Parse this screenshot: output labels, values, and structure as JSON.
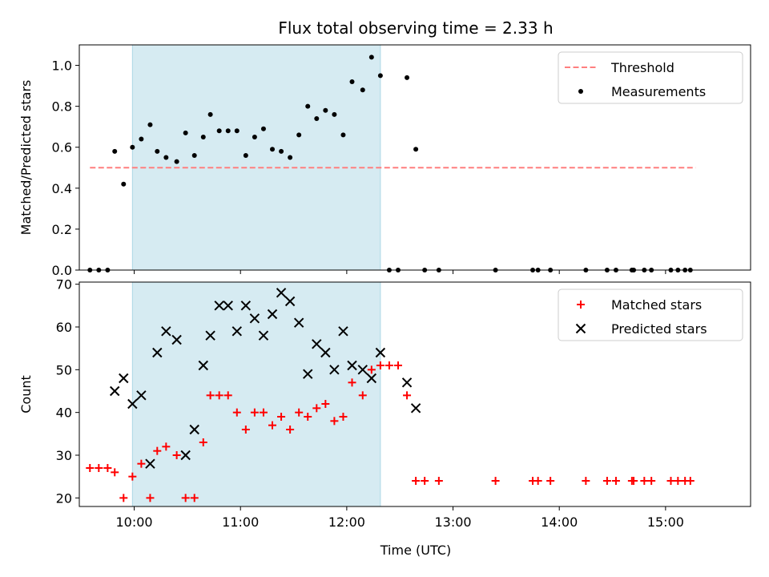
{
  "chart_data": {
    "title": "Flux total observing time = 2.33 h",
    "x_axis": {
      "label": "Time (UTC)",
      "range": [
        "09:29",
        "15:48"
      ],
      "ticks": [
        "10:00",
        "11:00",
        "12:00",
        "13:00",
        "14:00",
        "15:00"
      ]
    },
    "highlight_interval": [
      "09:59",
      "12:19"
    ],
    "panels": [
      {
        "type": "scatter",
        "ylabel": "Matched/Predicted stars",
        "ylim": [
          0,
          1.1
        ],
        "yticks": [
          "0.0",
          "0.2",
          "0.4",
          "0.6",
          "0.8",
          "1.0"
        ],
        "legend_position": "top-right",
        "series": [
          {
            "name": "Threshold",
            "style": "dashed-line",
            "color": "#ff7f7f",
            "points": [
              [
                "09:35",
                0.5
              ],
              [
                "15:17",
                0.5
              ]
            ]
          },
          {
            "name": "Measurements",
            "style": "dot",
            "color": "#000000",
            "points": [
              [
                "09:35",
                0.0
              ],
              [
                "09:40",
                0.0
              ],
              [
                "09:45",
                0.0
              ],
              [
                "09:49",
                0.58
              ],
              [
                "09:54",
                0.42
              ],
              [
                "09:59",
                0.6
              ],
              [
                "10:04",
                0.64
              ],
              [
                "10:09",
                0.71
              ],
              [
                "10:13",
                0.58
              ],
              [
                "10:18",
                0.55
              ],
              [
                "10:24",
                0.53
              ],
              [
                "10:29",
                0.67
              ],
              [
                "10:34",
                0.56
              ],
              [
                "10:39",
                0.65
              ],
              [
                "10:43",
                0.76
              ],
              [
                "10:48",
                0.68
              ],
              [
                "10:53",
                0.68
              ],
              [
                "10:58",
                0.68
              ],
              [
                "11:03",
                0.56
              ],
              [
                "11:08",
                0.65
              ],
              [
                "11:13",
                0.69
              ],
              [
                "11:18",
                0.59
              ],
              [
                "11:23",
                0.58
              ],
              [
                "11:28",
                0.55
              ],
              [
                "11:33",
                0.66
              ],
              [
                "11:38",
                0.8
              ],
              [
                "11:43",
                0.74
              ],
              [
                "11:48",
                0.78
              ],
              [
                "11:53",
                0.76
              ],
              [
                "11:58",
                0.66
              ],
              [
                "12:03",
                0.92
              ],
              [
                "12:09",
                0.88
              ],
              [
                "12:14",
                1.04
              ],
              [
                "12:19",
                0.95
              ],
              [
                "12:24",
                0.0
              ],
              [
                "12:29",
                0.0
              ],
              [
                "12:34",
                0.94
              ],
              [
                "12:39",
                0.59
              ],
              [
                "12:44",
                0.0
              ],
              [
                "12:52",
                0.0
              ],
              [
                "13:24",
                0.0
              ],
              [
                "13:45",
                0.0
              ],
              [
                "13:48",
                0.0
              ],
              [
                "13:55",
                0.0
              ],
              [
                "14:15",
                0.0
              ],
              [
                "14:27",
                0.0
              ],
              [
                "14:32",
                0.0
              ],
              [
                "14:41",
                0.0
              ],
              [
                "14:42",
                0.0
              ],
              [
                "14:48",
                0.0
              ],
              [
                "14:52",
                0.0
              ],
              [
                "15:03",
                0.0
              ],
              [
                "15:07",
                0.0
              ],
              [
                "15:11",
                0.0
              ],
              [
                "15:14",
                0.0
              ]
            ]
          }
        ]
      },
      {
        "type": "scatter",
        "ylabel": "Count",
        "ylim": [
          18,
          70.5
        ],
        "yticks": [
          "20",
          "30",
          "40",
          "50",
          "60",
          "70"
        ],
        "legend_position": "top-right",
        "series": [
          {
            "name": "Matched stars",
            "marker": "plus",
            "color": "#ff0000",
            "points": [
              [
                "09:35",
                27
              ],
              [
                "09:40",
                27
              ],
              [
                "09:45",
                27
              ],
              [
                "09:49",
                26
              ],
              [
                "09:54",
                20
              ],
              [
                "09:59",
                25
              ],
              [
                "10:04",
                28
              ],
              [
                "10:09",
                20
              ],
              [
                "10:13",
                31
              ],
              [
                "10:18",
                32
              ],
              [
                "10:24",
                30
              ],
              [
                "10:29",
                20
              ],
              [
                "10:34",
                20
              ],
              [
                "10:39",
                33
              ],
              [
                "10:43",
                44
              ],
              [
                "10:48",
                44
              ],
              [
                "10:53",
                44
              ],
              [
                "10:58",
                40
              ],
              [
                "11:03",
                36
              ],
              [
                "11:08",
                40
              ],
              [
                "11:13",
                40
              ],
              [
                "11:18",
                37
              ],
              [
                "11:23",
                39
              ],
              [
                "11:28",
                36
              ],
              [
                "11:33",
                40
              ],
              [
                "11:38",
                39
              ],
              [
                "11:43",
                41
              ],
              [
                "11:48",
                42
              ],
              [
                "11:53",
                38
              ],
              [
                "11:58",
                39
              ],
              [
                "12:03",
                47
              ],
              [
                "12:09",
                44
              ],
              [
                "12:14",
                50
              ],
              [
                "12:19",
                51
              ],
              [
                "12:24",
                51
              ],
              [
                "12:29",
                51
              ],
              [
                "12:34",
                44
              ],
              [
                "12:39",
                24
              ],
              [
                "12:44",
                24
              ],
              [
                "12:52",
                24
              ],
              [
                "13:24",
                24
              ],
              [
                "13:45",
                24
              ],
              [
                "13:48",
                24
              ],
              [
                "13:55",
                24
              ],
              [
                "14:15",
                24
              ],
              [
                "14:27",
                24
              ],
              [
                "14:32",
                24
              ],
              [
                "14:41",
                24
              ],
              [
                "14:42",
                24
              ],
              [
                "14:48",
                24
              ],
              [
                "14:52",
                24
              ],
              [
                "15:03",
                24
              ],
              [
                "15:07",
                24
              ],
              [
                "15:11",
                24
              ],
              [
                "15:14",
                24
              ]
            ]
          },
          {
            "name": "Predicted stars",
            "marker": "x",
            "color": "#000000",
            "points": [
              [
                "09:49",
                45
              ],
              [
                "09:54",
                48
              ],
              [
                "09:59",
                42
              ],
              [
                "10:04",
                44
              ],
              [
                "10:09",
                28
              ],
              [
                "10:13",
                54
              ],
              [
                "10:18",
                59
              ],
              [
                "10:24",
                57
              ],
              [
                "10:29",
                30
              ],
              [
                "10:34",
                36
              ],
              [
                "10:39",
                51
              ],
              [
                "10:43",
                58
              ],
              [
                "10:48",
                65
              ],
              [
                "10:53",
                65
              ],
              [
                "10:58",
                59
              ],
              [
                "11:03",
                65
              ],
              [
                "11:08",
                62
              ],
              [
                "11:13",
                58
              ],
              [
                "11:18",
                63
              ],
              [
                "11:23",
                68
              ],
              [
                "11:28",
                66
              ],
              [
                "11:33",
                61
              ],
              [
                "11:38",
                49
              ],
              [
                "11:43",
                56
              ],
              [
                "11:48",
                54
              ],
              [
                "11:53",
                50
              ],
              [
                "11:58",
                59
              ],
              [
                "12:03",
                51
              ],
              [
                "12:09",
                50
              ],
              [
                "12:14",
                48
              ],
              [
                "12:19",
                54
              ],
              [
                "12:34",
                47
              ],
              [
                "12:39",
                41
              ]
            ]
          }
        ]
      }
    ]
  }
}
